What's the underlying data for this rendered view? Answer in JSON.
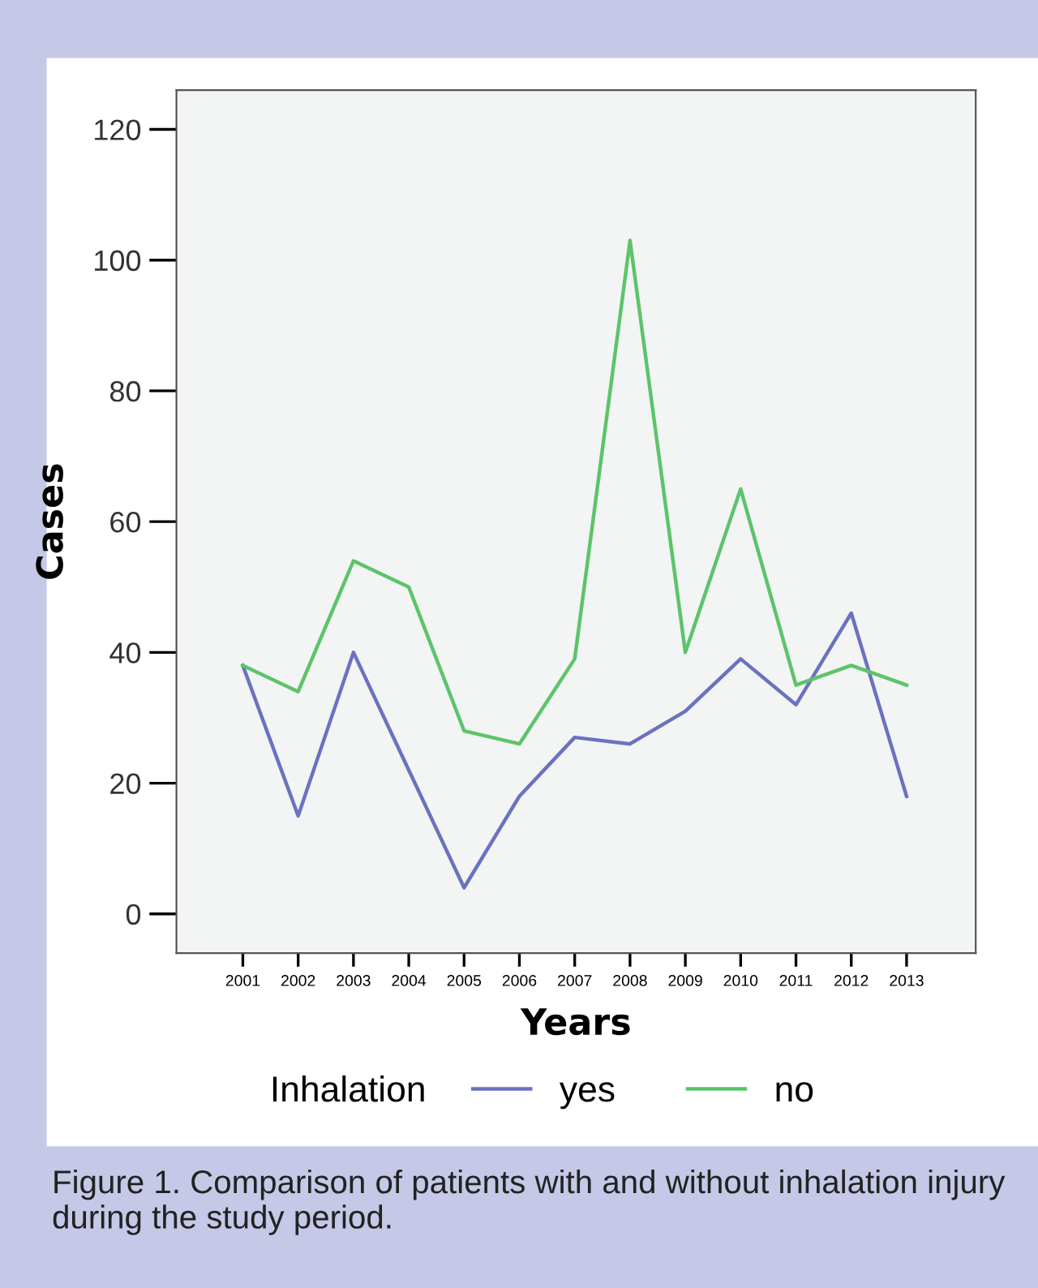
{
  "chart_data": {
    "type": "line",
    "xlabel": "Years",
    "ylabel": "Cases",
    "legend_title": "Inhalation",
    "categories": [
      "2001",
      "2002",
      "2003",
      "2004",
      "2005",
      "2006",
      "2007",
      "2008",
      "2009",
      "2010",
      "2011",
      "2012",
      "2013"
    ],
    "series": [
      {
        "name": "yes",
        "color": "#6a72c0",
        "values": [
          38,
          15,
          40,
          22,
          4,
          18,
          27,
          26,
          31,
          39,
          32,
          46,
          18
        ]
      },
      {
        "name": "no",
        "color": "#5cc46a",
        "values": [
          38,
          34,
          54,
          50,
          28,
          26,
          39,
          103,
          40,
          65,
          35,
          38,
          35
        ]
      }
    ],
    "ylim": [
      -6,
      126
    ],
    "yticks": [
      0,
      20,
      40,
      60,
      80,
      100,
      120
    ],
    "grid": false,
    "legend": "bottom",
    "marker": "none",
    "line_style": "solid",
    "annotations": [
      "Figure 1. Comparison of patients with and without inhalation injury during the study period."
    ]
  }
}
